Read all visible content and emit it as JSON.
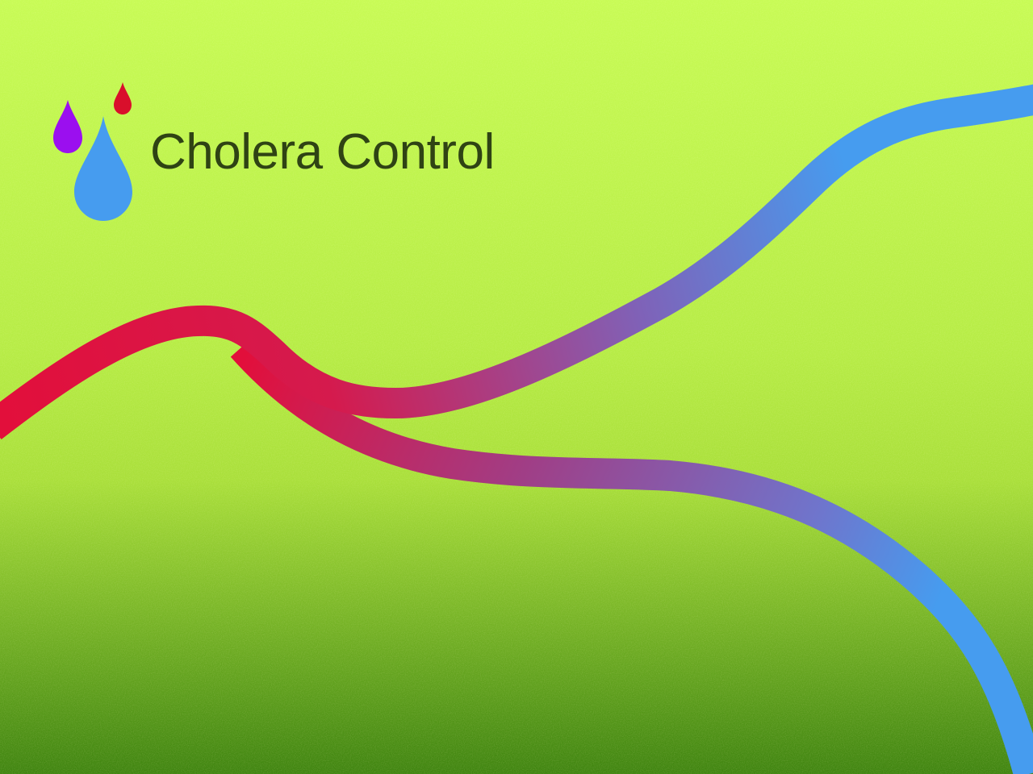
{
  "slide": {
    "title": "Cholera Control"
  },
  "colors": {
    "background_top": "#c7fb54",
    "background_mid": "#a9df3a",
    "background_bottom": "#3f8410",
    "title_text": "#2f4314",
    "stream_red": "#e20f3b",
    "stream_purple": "#a03e86",
    "stream_blue": "#469cef",
    "drop_purple": "#9b0fef",
    "drop_red": "#d90f2b",
    "drop_blue": "#469cef"
  },
  "icons": {
    "logo": "three-water-drops-icon",
    "streams": "river-streams-graphic"
  }
}
